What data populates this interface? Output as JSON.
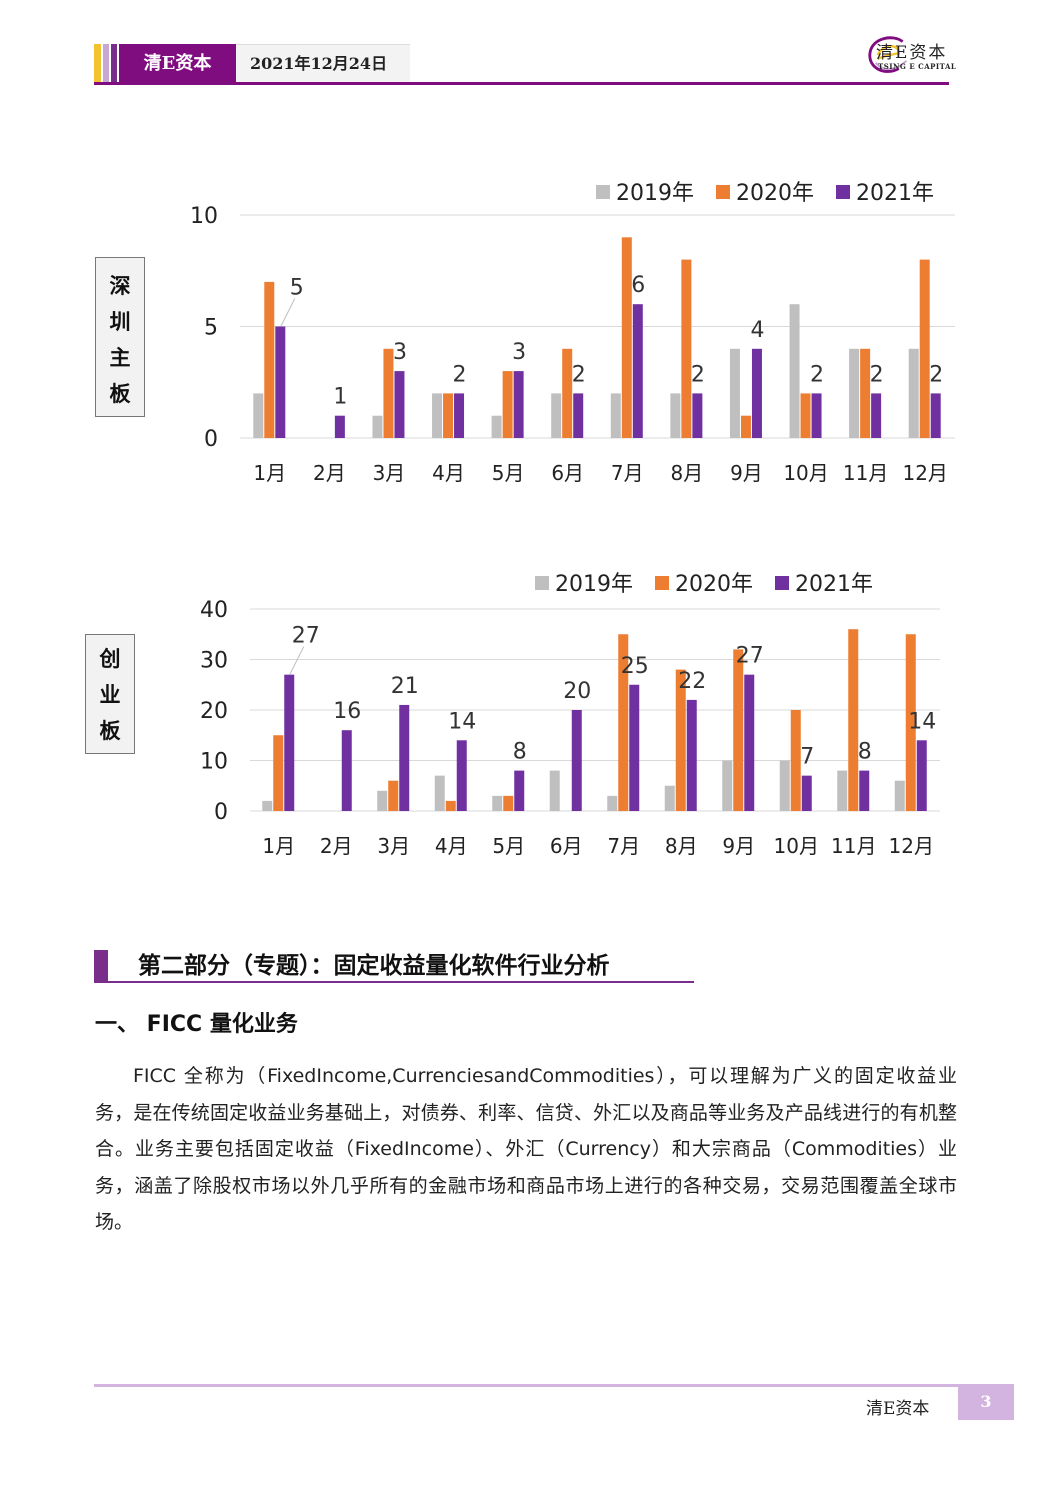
{
  "header": {
    "brand": "清E资本",
    "date": "2021年12月24日",
    "logo_cn": "清E资本",
    "logo_en": "TSING E CAPITAL",
    "colors": {
      "brand": "#800d80",
      "accent_yellow": "#f2c230",
      "accent_light": "#c8a7d6"
    }
  },
  "chart_data": [
    {
      "type": "bar",
      "side_label": "深圳主板",
      "categories": [
        "1月",
        "2月",
        "3月",
        "4月",
        "5月",
        "6月",
        "7月",
        "8月",
        "9月",
        "10月",
        "11月",
        "12月"
      ],
      "ylim": [
        0,
        10
      ],
      "yticks": [
        0,
        5,
        10
      ],
      "grid": true,
      "legend_position": "top-right",
      "series": [
        {
          "name": "2019年",
          "color": "#bfbfbf",
          "values": [
            2,
            0,
            1,
            2,
            1,
            2,
            2,
            2,
            4,
            6,
            4,
            4
          ]
        },
        {
          "name": "2020年",
          "color": "#ed7d31",
          "values": [
            7,
            0,
            4,
            2,
            3,
            4,
            9,
            8,
            1,
            2,
            4,
            8
          ]
        },
        {
          "name": "2021年",
          "color": "#7030a0",
          "values": [
            5,
            1,
            3,
            2,
            3,
            2,
            6,
            2,
            4,
            2,
            2,
            2
          ]
        }
      ],
      "data_labels_series": "2021年"
    },
    {
      "type": "bar",
      "side_label": "创业板",
      "categories": [
        "1月",
        "2月",
        "3月",
        "4月",
        "5月",
        "6月",
        "7月",
        "8月",
        "9月",
        "10月",
        "11月",
        "12月"
      ],
      "ylim": [
        0,
        40
      ],
      "yticks": [
        0,
        10,
        20,
        30,
        40
      ],
      "grid": true,
      "legend_position": "top-right",
      "series": [
        {
          "name": "2019年",
          "color": "#bfbfbf",
          "values": [
            2,
            0,
            4,
            7,
            3,
            8,
            3,
            5,
            10,
            10,
            8,
            6
          ]
        },
        {
          "name": "2020年",
          "color": "#ed7d31",
          "values": [
            15,
            0,
            6,
            2,
            3,
            0,
            35,
            28,
            32,
            20,
            36,
            35
          ]
        },
        {
          "name": "2021年",
          "color": "#7030a0",
          "values": [
            27,
            16,
            21,
            14,
            8,
            20,
            25,
            22,
            27,
            7,
            8,
            14
          ]
        }
      ],
      "data_labels_series": "2021年"
    }
  ],
  "section": {
    "heading": "第二部分（专题）：固定收益量化软件行业分析",
    "subheading": "一、 FICC 量化业务",
    "paragraph": "FICC 全称为（FixedIncome,CurrenciesandCommodities），可以理解为广义的固定收益业务，是在传统固定收益业务基础上，对债券、利率、信贷、外汇以及商品等业务及产品线进行的有机整合。业务主要包括固定收益（FixedIncome）、外汇（Currency）和大宗商品（Commodities）业务，涵盖了除股权市场以外几乎所有的金融市场和商品市场上进行的各种交易，交易范围覆盖全球市场。"
  },
  "footer": {
    "brand": "清E资本",
    "page": "3"
  }
}
